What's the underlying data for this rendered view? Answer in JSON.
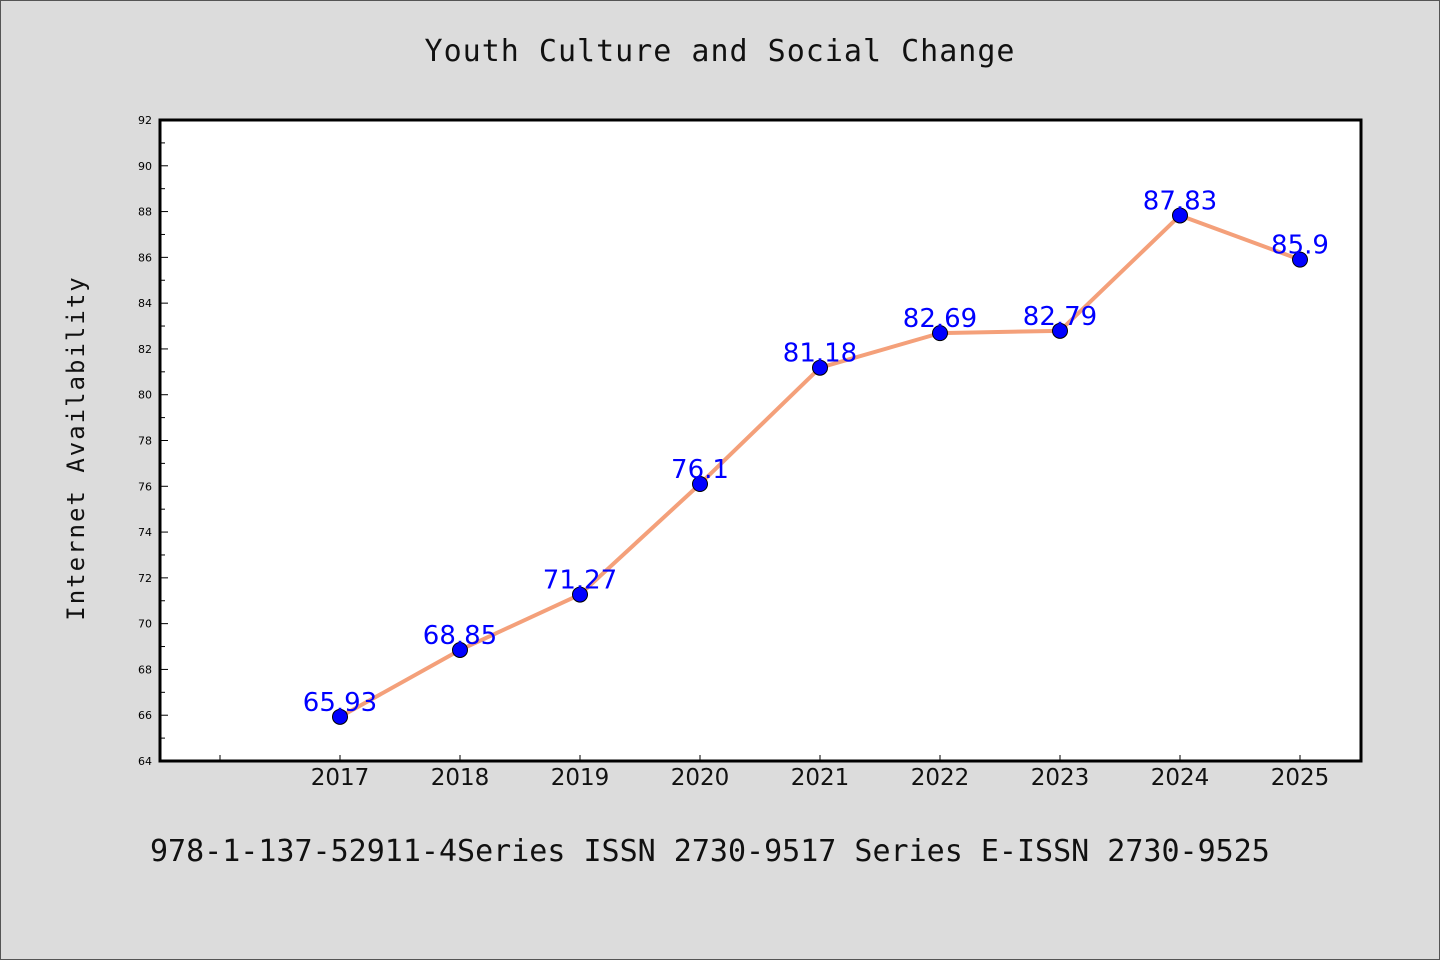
{
  "chart_data": {
    "type": "line",
    "title": "Youth Culture and Social Change",
    "xlabel": "",
    "ylabel": "Internet Availability",
    "categories": [
      "2017",
      "2018",
      "2019",
      "2020",
      "2021",
      "2022",
      "2023",
      "2024",
      "2025"
    ],
    "series": [
      {
        "values": [
          65.93,
          68.85,
          71.27,
          76.1,
          81.18,
          82.69,
          82.79,
          87.83,
          85.9
        ],
        "labels": [
          "65.93",
          "68.85",
          "71.27",
          "76.1",
          "81.18",
          "82.69",
          "82.79",
          "87.83",
          "85.9"
        ],
        "line_color": "#f4a07a",
        "marker_color": "#0000ff",
        "label_color": "#0000ff"
      }
    ],
    "ylim": [
      64,
      92
    ],
    "yticks": [
      "64",
      "66",
      "68",
      "70",
      "72",
      "74",
      "76",
      "78",
      "80",
      "82",
      "84",
      "86",
      "88",
      "90",
      "92"
    ],
    "grid": false,
    "legend": "none"
  },
  "footer": {
    "text": "978-1-137-52911-4Series ISSN 2730-9517 Series E-ISSN 2730-9525"
  },
  "colors": {
    "background": "#dcdcdc",
    "plot_background": "#ffffff"
  }
}
